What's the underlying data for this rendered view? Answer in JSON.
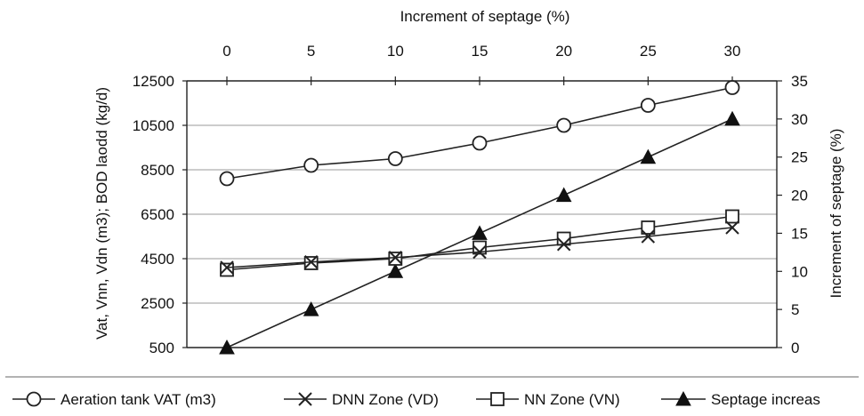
{
  "chart_data": {
    "type": "line",
    "title": "",
    "top_axis": {
      "label": "Increment of septage (%)",
      "ticks": [
        "0",
        "5",
        "10",
        "15",
        "20",
        "25",
        "30"
      ]
    },
    "x": [
      0,
      5,
      10,
      15,
      20,
      25,
      30
    ],
    "xlim": [
      0,
      30
    ],
    "left_axis": {
      "label": "Vat, Vnn, Vdn (m3); BOD laodd (kg/d)",
      "ticks": [
        "500",
        "2500",
        "4500",
        "6500",
        "8500",
        "10500",
        "12500"
      ],
      "ylim": [
        500,
        12500
      ]
    },
    "right_axis": {
      "label": "Increment of septage (%)",
      "ticks": [
        "0",
        "5",
        "10",
        "15",
        "20",
        "25",
        "30",
        "35"
      ],
      "ylim": [
        0,
        35
      ]
    },
    "grid": "horizontal",
    "legend_position": "bottom",
    "series": [
      {
        "name": "Aeration tank  VAT (m3)",
        "marker": "circle",
        "axis": "left",
        "values": [
          8100,
          8700,
          9000,
          9700,
          10500,
          11400,
          12200
        ]
      },
      {
        "name": "DNN Zone (VD)",
        "marker": "x",
        "axis": "left",
        "values": [
          4100,
          4350,
          4550,
          4800,
          5150,
          5500,
          5900
        ]
      },
      {
        "name": "NN Zone (VN)",
        "marker": "square",
        "axis": "left",
        "values": [
          4000,
          4300,
          4500,
          5000,
          5400,
          5900,
          6400
        ]
      },
      {
        "name": "Septage increas",
        "marker": "triangle",
        "axis": "right",
        "values": [
          0,
          5,
          10,
          15,
          20,
          25,
          30
        ]
      }
    ]
  }
}
